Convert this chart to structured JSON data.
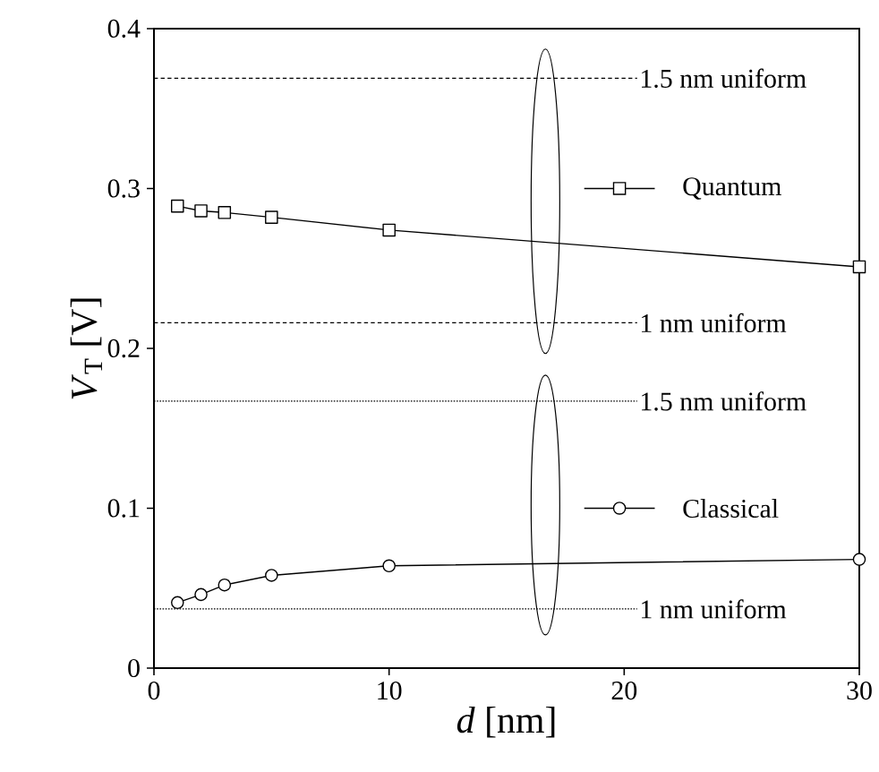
{
  "chart_data": {
    "type": "line",
    "xlabel": "*d* [nm]",
    "ylabel": "*V*$_{T}$ [V]",
    "x": [
      1,
      2,
      3,
      5,
      10,
      30
    ],
    "series": [
      {
        "name": "Quantum",
        "color": "#000000",
        "marker": "square",
        "values": [
          0.289,
          0.286,
          0.285,
          0.282,
          0.274,
          0.251
        ]
      },
      {
        "name": "Classical",
        "color": "#000000",
        "marker": "circle",
        "values": [
          0.041,
          0.046,
          0.052,
          0.058,
          0.064,
          0.068
        ]
      }
    ],
    "ref_lines": [
      {
        "axis": "y",
        "value": 0.369,
        "label": "1.5 nm uniform",
        "line_style": "dashed"
      },
      {
        "axis": "y",
        "value": 0.216,
        "label": "1 nm uniform",
        "line_style": "dashed"
      },
      {
        "axis": "y",
        "value": 0.167,
        "label": "1.5 nm uniform",
        "line_style": "dotted"
      },
      {
        "axis": "y",
        "value": 0.037,
        "label": "1 nm uniform",
        "line_style": "dotted"
      }
    ],
    "xlim": [
      0,
      30
    ],
    "ylim": [
      0,
      0.4
    ],
    "xticks": [
      0,
      10,
      20,
      30
    ],
    "yticks": [
      0,
      0.1,
      0.2,
      0.3,
      0.4
    ],
    "legend": "right",
    "grid": false
  }
}
